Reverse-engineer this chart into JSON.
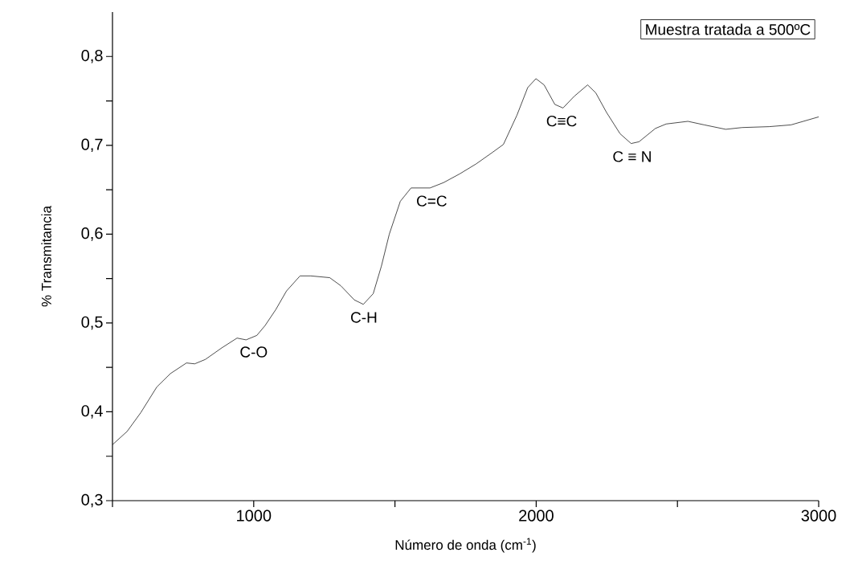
{
  "chart_data": {
    "type": "line",
    "xlabel": "Número de onda (cm$^{-1}$)",
    "ylabel": "% Transmitancia",
    "annotations": [
      "Muestra tratada a 500ºC",
      {
        "text": "C-O",
        "x": 1000,
        "y": 0.482
      },
      {
        "text": "C-H",
        "x": 1390,
        "y": 0.521
      },
      {
        "text": "C=C",
        "x": 1630,
        "y": 0.652
      },
      {
        "text": "C≡C",
        "x": 2090,
        "y": 0.742
      },
      {
        "text": "C ≡ N",
        "x": 2340,
        "y": 0.702
      }
    ],
    "xlim": [
      500,
      3000
    ],
    "ylim": [
      0.3,
      0.85
    ],
    "xticks": [
      {
        "value": 500,
        "label": null
      },
      1000,
      {
        "value": 1500,
        "label": null
      },
      2000,
      {
        "value": 2500,
        "label": null
      },
      3000
    ],
    "yticks": [
      {
        "value": 0.3,
        "label": "0,3"
      },
      {
        "value": 0.35,
        "label": null
      },
      {
        "value": 0.4,
        "label": "0,4"
      },
      {
        "value": 0.45,
        "label": null
      },
      {
        "value": 0.5,
        "label": "0,5"
      },
      {
        "value": 0.55,
        "label": null
      },
      {
        "value": 0.6,
        "label": "0,6"
      },
      {
        "value": 0.65,
        "label": null
      },
      {
        "value": 0.7,
        "label": "0,7"
      },
      {
        "value": 0.75,
        "label": null
      },
      {
        "value": 0.8,
        "label": "0,8"
      }
    ],
    "series": [
      {
        "color": "#000000",
        "x": [
          500,
          552,
          600,
          657,
          705,
          762,
          791,
          829,
          887,
          941,
          973,
          1011,
          1040,
          1078,
          1116,
          1164,
          1202,
          1269,
          1308,
          1356,
          1388,
          1423,
          1452,
          1480,
          1519,
          1557,
          1624,
          1672,
          1730,
          1787,
          1845,
          1884,
          1932,
          1970,
          1999,
          2028,
          2066,
          2095,
          2134,
          2182,
          2211,
          2249,
          2297,
          2336,
          2364,
          2422,
          2460,
          2537,
          2595,
          2671,
          2729,
          2825,
          2902,
          3000
        ],
        "values": [
          0.363,
          0.378,
          0.399,
          0.428,
          0.443,
          0.455,
          0.454,
          0.459,
          0.472,
          0.483,
          0.481,
          0.486,
          0.497,
          0.515,
          0.536,
          0.553,
          0.553,
          0.551,
          0.542,
          0.526,
          0.521,
          0.533,
          0.564,
          0.6,
          0.637,
          0.652,
          0.652,
          0.658,
          0.668,
          0.679,
          0.692,
          0.701,
          0.734,
          0.765,
          0.775,
          0.768,
          0.746,
          0.742,
          0.755,
          0.768,
          0.759,
          0.737,
          0.713,
          0.702,
          0.704,
          0.719,
          0.724,
          0.727,
          0.723,
          0.718,
          0.72,
          0.721,
          0.723,
          0.732
        ]
      }
    ]
  }
}
